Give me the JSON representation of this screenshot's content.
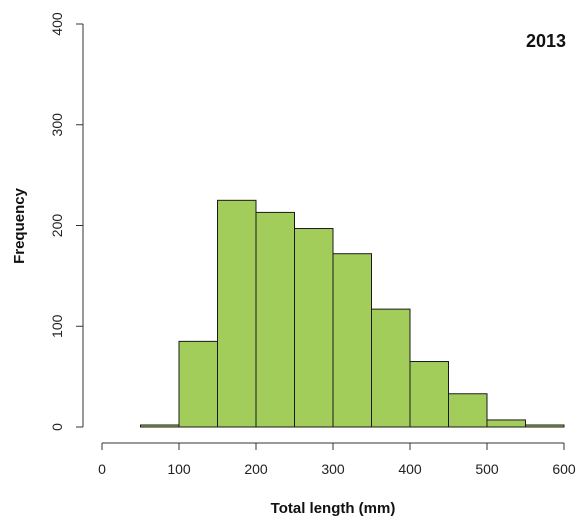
{
  "chart_data": {
    "type": "bar",
    "title": "2013",
    "xlabel": "Total length (mm)",
    "ylabel": "Frequency",
    "bin_edges": [
      0,
      50,
      100,
      150,
      200,
      250,
      300,
      350,
      400,
      450,
      500,
      550,
      600
    ],
    "values": [
      0,
      2,
      85,
      225,
      213,
      197,
      172,
      117,
      65,
      33,
      7,
      2
    ],
    "xlim": [
      0,
      600
    ],
    "ylim": [
      0,
      400
    ],
    "xticks": [
      0,
      100,
      200,
      300,
      400,
      500,
      600
    ],
    "yticks": [
      0,
      100,
      200,
      300,
      400
    ],
    "grid": false,
    "bar_color": "#a2cd5a",
    "edge_color": "#1a1a1a"
  }
}
